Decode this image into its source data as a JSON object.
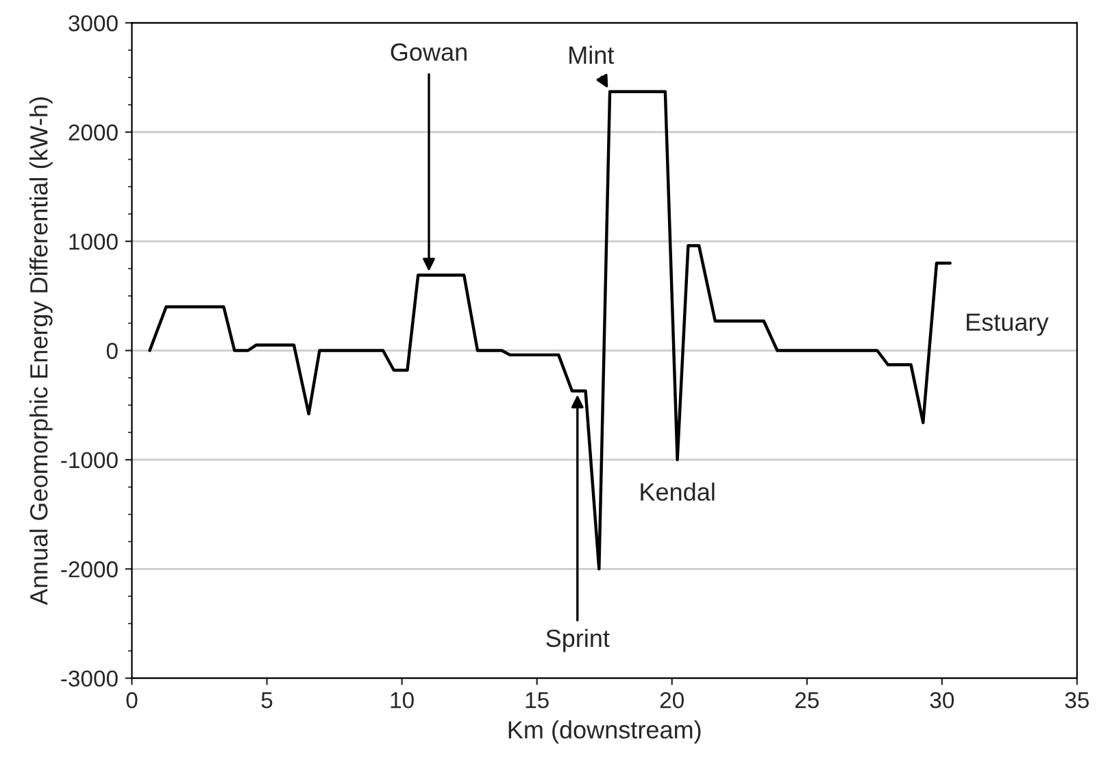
{
  "chart_data": {
    "type": "line",
    "xlabel": "Km (downstream)",
    "ylabel": "Annual Geomorphic Energy Differential (kW-h)",
    "xlim": [
      0,
      35
    ],
    "xticks": [
      0,
      5,
      10,
      15,
      20,
      25,
      30,
      35
    ],
    "ylim": [
      -3000,
      3000
    ],
    "yticks": [
      -3000,
      -2000,
      -1000,
      0,
      1000,
      2000,
      3000
    ],
    "grid": "y",
    "marker": "none",
    "line_style": "solid",
    "series": [
      {
        "color": "#000000",
        "x": [
          0.66,
          1.27,
          3.4,
          3.8,
          4.3,
          4.6,
          6.0,
          6.55,
          6.95,
          9.3,
          9.7,
          10.2,
          10.6,
          12.3,
          12.8,
          13.7,
          14.0,
          15.8,
          16.3,
          16.8,
          17.3,
          17.7,
          19.75,
          20.2,
          20.6,
          21.0,
          21.6,
          23.4,
          23.9,
          27.6,
          28.0,
          28.85,
          29.3,
          29.8,
          30.3
        ],
        "values": [
          0,
          400,
          400,
          0,
          0,
          50,
          50,
          -580,
          0,
          0,
          -180,
          -180,
          690,
          690,
          0,
          0,
          -40,
          -40,
          -370,
          -370,
          -2000,
          2370,
          2370,
          -1000,
          960,
          960,
          270,
          270,
          0,
          0,
          -130,
          -130,
          -660,
          800,
          800
        ]
      }
    ],
    "annotations": [
      {
        "text": "Gowan",
        "x": 11.0,
        "y": 690
      },
      {
        "text": "Mint",
        "x": 17.7,
        "y": 2370
      },
      {
        "text": "Sprint",
        "x": 16.5,
        "y": -370
      },
      {
        "text": "Kendal",
        "x": 20.2,
        "y": -1000
      },
      "Estuary"
    ]
  }
}
